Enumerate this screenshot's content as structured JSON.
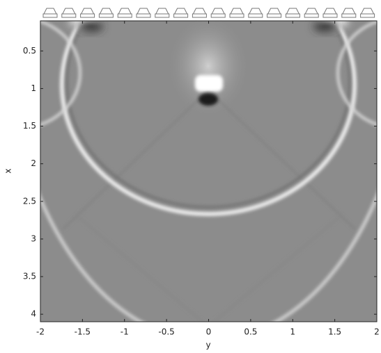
{
  "chart_data": {
    "type": "image",
    "xlabel": "y",
    "ylabel": "x",
    "xlim": [
      -2,
      2
    ],
    "xticks": [
      -2,
      -1.5,
      -1,
      -0.5,
      0,
      0.5,
      1,
      1.5,
      2
    ],
    "ylim": [
      0.1,
      4.1
    ],
    "yticks": [
      0.5,
      1,
      1.5,
      2,
      2.5,
      3,
      3.5,
      4
    ],
    "y_inverted": true,
    "colormap": "gray"
  }
}
